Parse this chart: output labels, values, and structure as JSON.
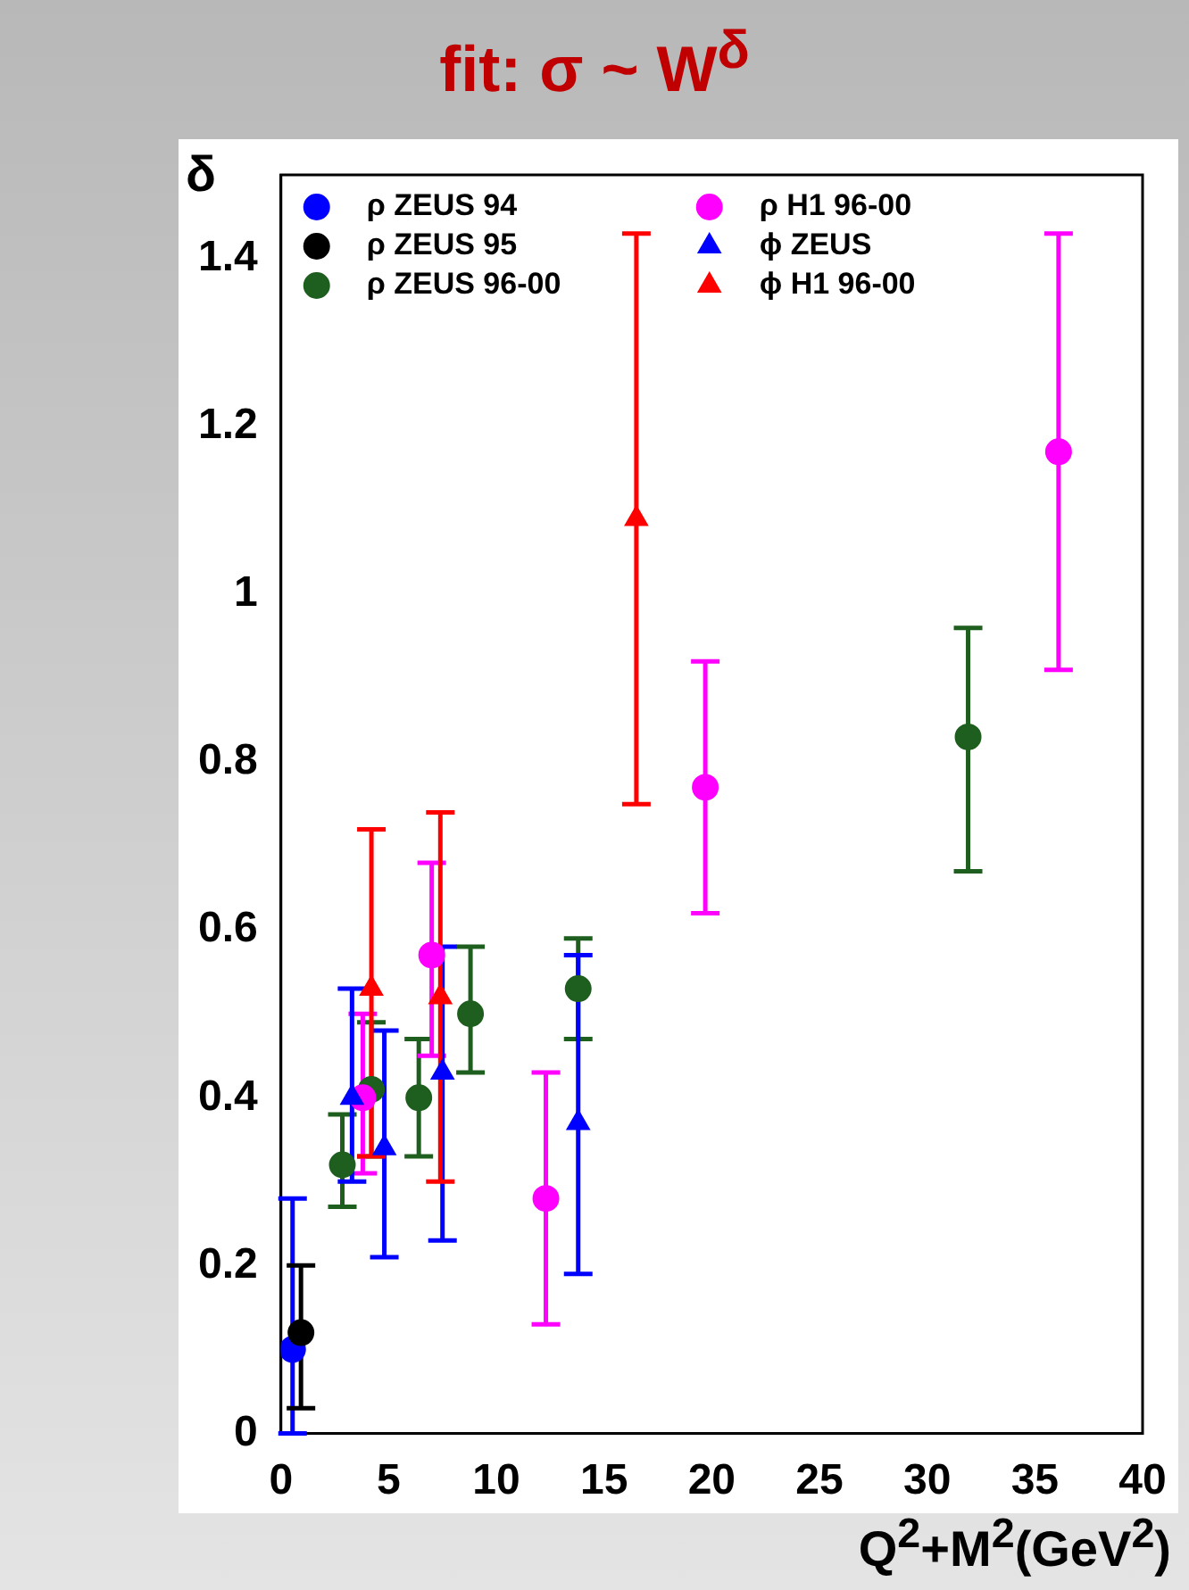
{
  "chart_data": {
    "type": "scatter",
    "title": "fit: σ ~ W$^{δ}$",
    "ylabel": "δ",
    "xlabel": "Q$^{2}$+M$^{2}$(GeV$^{2}$)",
    "xlim": [
      0,
      40
    ],
    "xticks": [
      0,
      5,
      10,
      15,
      20,
      25,
      30,
      35,
      40
    ],
    "ylim": [
      0,
      1.5
    ],
    "yticks": [
      0,
      0.2,
      0.4,
      0.6,
      0.8,
      1,
      1.2,
      1.4
    ],
    "grid": false,
    "legend": "top left",
    "series": [
      {
        "name": "ρ ZEUS 94",
        "color": "#0000ff",
        "marker": "circle",
        "x": [
          0.54
        ],
        "values": [
          0.1
        ],
        "errors": [
          [
            0,
            0.28
          ]
        ]
      },
      {
        "name": "ρ ZEUS 95",
        "color": "#000000",
        "marker": "circle",
        "x": [
          0.93
        ],
        "values": [
          0.12
        ],
        "errors": [
          [
            0.03,
            0.2
          ]
        ]
      },
      {
        "name": "ρ ZEUS 96-00",
        "color": "#1e5e1e",
        "marker": "circle",
        "x": [
          2.85,
          4.2,
          6.4,
          8.8,
          13.8,
          31.9
        ],
        "values": [
          0.32,
          0.41,
          0.4,
          0.5,
          0.53,
          0.83
        ],
        "errors": [
          [
            0.27,
            0.38
          ],
          [
            0.33,
            0.49
          ],
          [
            0.33,
            0.47
          ],
          [
            0.43,
            0.58
          ],
          [
            0.47,
            0.59
          ],
          [
            0.67,
            0.96
          ]
        ]
      },
      {
        "name": "ρ H1 96-00",
        "color": "#ff00ff",
        "marker": "circle",
        "x": [
          3.8,
          7.0,
          12.3,
          19.7,
          36.1
        ],
        "values": [
          0.4,
          0.57,
          0.28,
          0.77,
          1.17
        ],
        "errors": [
          [
            0.31,
            0.5
          ],
          [
            0.45,
            0.68
          ],
          [
            0.13,
            0.43
          ],
          [
            0.62,
            0.92
          ],
          [
            0.91,
            1.43
          ]
        ]
      },
      {
        "name": "ϕ ZEUS",
        "color": "#0000ff",
        "marker": "triangle",
        "x": [
          3.3,
          4.8,
          7.5,
          13.8
        ],
        "values": [
          0.4,
          0.34,
          0.43,
          0.37
        ],
        "errors": [
          [
            0.3,
            0.53
          ],
          [
            0.21,
            0.48
          ],
          [
            0.23,
            0.58
          ],
          [
            0.19,
            0.57
          ]
        ]
      },
      {
        "name": "ϕ H1 96-00",
        "color": "#ff0000",
        "marker": "triangle",
        "x": [
          4.2,
          7.4,
          16.5
        ],
        "values": [
          0.53,
          0.52,
          1.09
        ],
        "errors": [
          [
            0.33,
            0.72
          ],
          [
            0.3,
            0.74
          ],
          [
            0.75,
            1.43
          ]
        ]
      }
    ]
  }
}
